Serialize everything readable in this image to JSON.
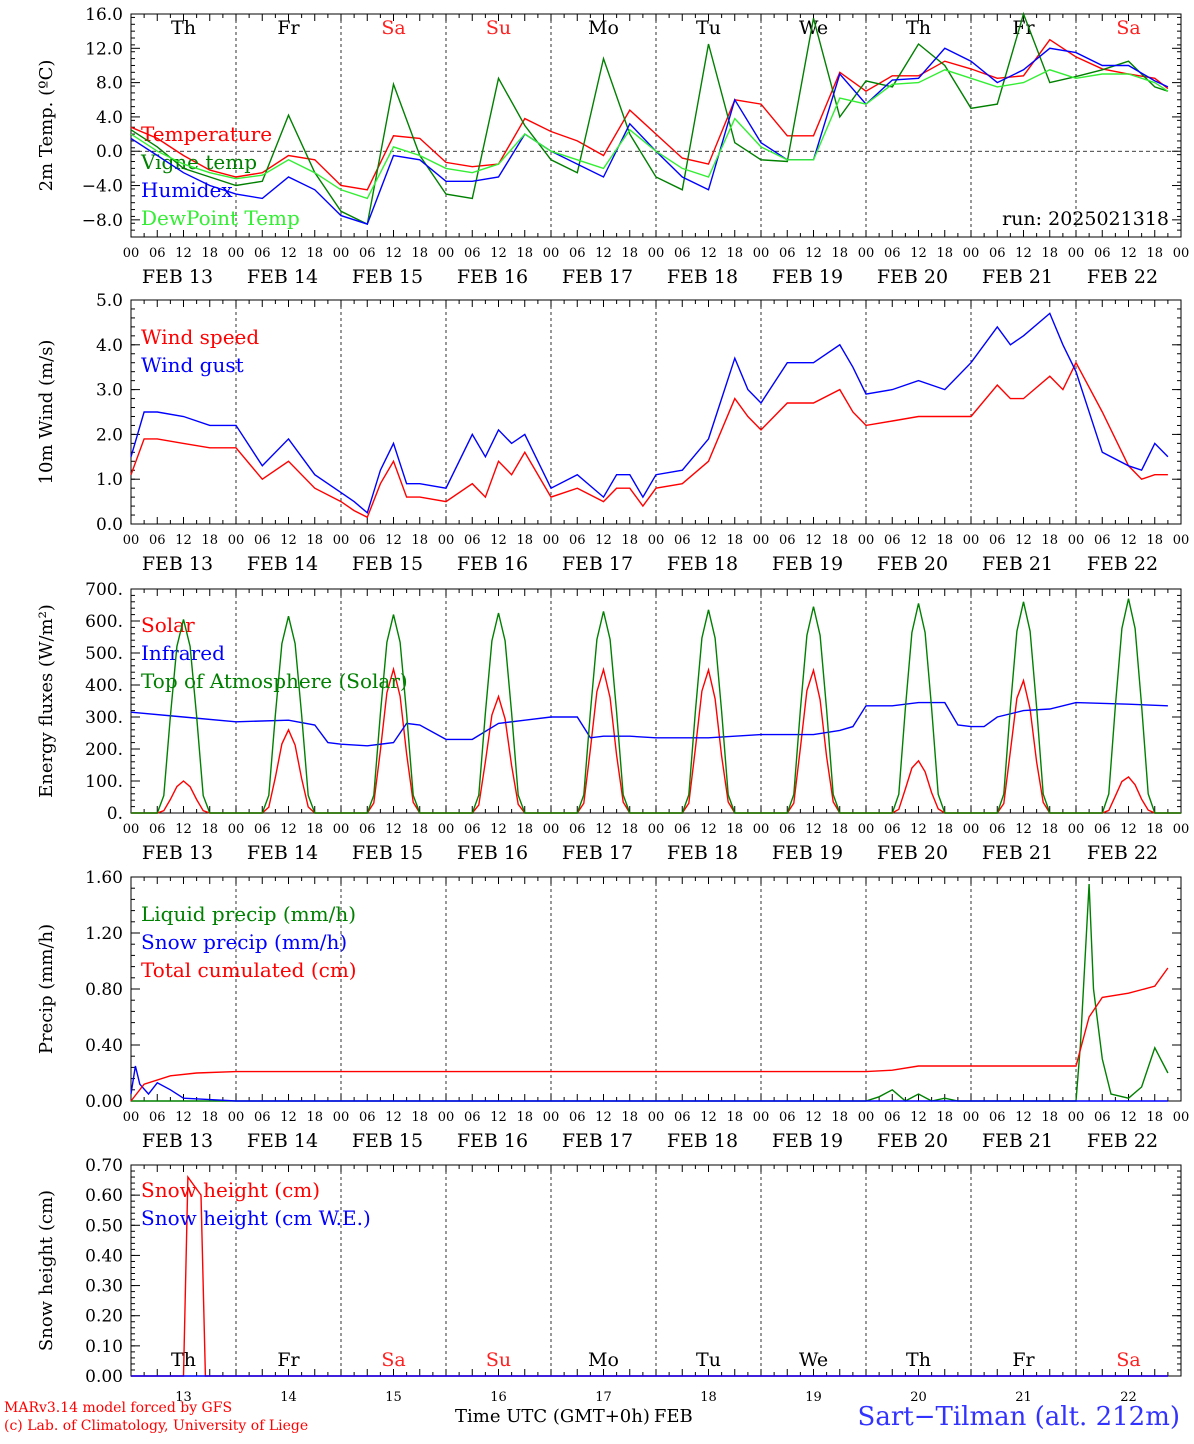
{
  "run_label": "run: 2025021318",
  "x_axis": {
    "hour_ticks": [
      "00",
      "06",
      "12",
      "18"
    ],
    "date_labels": [
      "FEB 13",
      "FEB 14",
      "FEB 15",
      "FEB 16",
      "FEB 17",
      "FEB 18",
      "FEB 19",
      "FEB 20",
      "FEB 21",
      "FEB 22"
    ],
    "day_names": [
      "Th",
      "Fr",
      "Sa",
      "Su",
      "Mo",
      "Tu",
      "We",
      "Th",
      "Fr",
      "Sa"
    ],
    "weekend_color": "#ff2020",
    "weekday_color": "#000000",
    "bottom_day_numbers": [
      "13",
      "14",
      "15",
      "16",
      "17",
      "18",
      "19",
      "20",
      "21",
      "22"
    ],
    "title": "Time UTC (GMT+0h)",
    "month": "FEB",
    "days": 10
  },
  "footer": {
    "model_line": "MARv3.14 model forced by GFS",
    "lab_line": "(c) Lab. of Climatology, University of Liege",
    "station": "Sart−Tilman (alt. 212m)"
  },
  "colors": {
    "red": "#ff0000",
    "green": "#008000",
    "blue": "#0000ff",
    "lime": "#33ee33",
    "grid": "#000000"
  },
  "chart_data": [
    {
      "type": "line",
      "ylabel": "2m Temp. (ºC)",
      "ylim": [
        -10,
        16
      ],
      "yticks": [
        "−8.0",
        "−4.0",
        "0.0",
        "4.0",
        "8.0",
        "12.0",
        "16.0"
      ],
      "ytick_values": [
        -8,
        -4,
        0,
        4,
        8,
        12,
        16
      ],
      "zero_line": true,
      "show_day_names_top": true,
      "x_unit": "hours since FEB 13 00 UTC",
      "series": [
        {
          "name": "Temperature",
          "color": "#ff0000",
          "x": [
            0,
            6,
            12,
            18,
            24,
            30,
            36,
            42,
            48,
            54,
            60,
            66,
            72,
            78,
            84,
            90,
            96,
            102,
            108,
            114,
            120,
            126,
            132,
            138,
            144,
            150,
            156,
            162,
            168,
            174,
            180,
            186,
            192,
            198,
            204,
            210,
            216,
            222,
            228,
            234,
            237
          ],
          "y": [
            2.8,
            1.5,
            -0.5,
            -2.2,
            -3.0,
            -2.5,
            -0.5,
            -1.0,
            -4.0,
            -4.5,
            1.8,
            1.5,
            -1.3,
            -1.8,
            -1.5,
            3.8,
            2.3,
            1.2,
            -0.5,
            4.8,
            2.0,
            -0.8,
            -1.5,
            6.0,
            5.5,
            1.8,
            1.8,
            9.2,
            7.0,
            8.8,
            8.8,
            10.5,
            9.6,
            8.5,
            8.8,
            13.0,
            11.0,
            9.6,
            9.0,
            8.5,
            7.3
          ]
        },
        {
          "name": "Vigne temp",
          "color": "#008000",
          "x": [
            0,
            6,
            12,
            18,
            24,
            30,
            36,
            42,
            48,
            54,
            60,
            66,
            72,
            78,
            84,
            90,
            96,
            102,
            108,
            114,
            120,
            126,
            132,
            138,
            144,
            150,
            156,
            162,
            168,
            174,
            180,
            186,
            192,
            198,
            204,
            210,
            216,
            222,
            228,
            234,
            237
          ],
          "y": [
            2.5,
            0.5,
            -2.0,
            -3.0,
            -4.0,
            -3.5,
            4.2,
            -2.5,
            -7.0,
            -8.5,
            7.8,
            -0.5,
            -5.0,
            -5.5,
            8.5,
            3.0,
            -1.0,
            -2.5,
            10.8,
            2.0,
            -3.0,
            -4.5,
            12.5,
            1.0,
            -1.0,
            -1.2,
            15.5,
            4.0,
            8.2,
            7.5,
            12.5,
            10.0,
            5.0,
            5.5,
            16.0,
            8.0,
            8.7,
            9.5,
            10.5,
            7.5,
            7.0
          ]
        },
        {
          "name": "Humidex",
          "color": "#0000ff",
          "x": [
            0,
            6,
            12,
            18,
            24,
            30,
            36,
            42,
            48,
            54,
            60,
            66,
            72,
            78,
            84,
            90,
            96,
            102,
            108,
            114,
            120,
            126,
            132,
            138,
            144,
            150,
            156,
            162,
            168,
            174,
            180,
            186,
            192,
            198,
            204,
            210,
            216,
            222,
            228,
            234,
            237
          ],
          "y": [
            1.5,
            -0.5,
            -2.5,
            -4.0,
            -5.0,
            -5.5,
            -3.0,
            -4.5,
            -7.5,
            -8.5,
            -0.5,
            -1.0,
            -3.5,
            -3.5,
            -3.0,
            2.0,
            0.0,
            -1.5,
            -3.0,
            3.2,
            0.0,
            -3.0,
            -4.5,
            6.0,
            1.0,
            -1.0,
            -1.0,
            9.0,
            5.5,
            8.3,
            8.5,
            12.0,
            10.5,
            8.0,
            9.5,
            12.0,
            11.5,
            10.0,
            10.0,
            8.2,
            7.5
          ]
        },
        {
          "name": "DewPoint Temp",
          "color": "#33ee33",
          "x": [
            0,
            6,
            12,
            18,
            24,
            30,
            36,
            42,
            48,
            54,
            60,
            66,
            72,
            78,
            84,
            90,
            96,
            102,
            108,
            114,
            120,
            126,
            132,
            138,
            144,
            150,
            156,
            162,
            168,
            174,
            180,
            186,
            192,
            198,
            204,
            210,
            216,
            222,
            228,
            234,
            237
          ],
          "y": [
            2.0,
            0.0,
            -1.5,
            -2.5,
            -3.2,
            -2.8,
            -1.0,
            -2.5,
            -4.5,
            -5.5,
            0.5,
            -0.5,
            -2.0,
            -2.5,
            -1.5,
            2.0,
            0.0,
            -1.0,
            -2.0,
            2.5,
            0.0,
            -2.0,
            -3.0,
            3.8,
            0.5,
            -1.0,
            -1.0,
            6.2,
            5.5,
            7.8,
            8.0,
            9.5,
            8.5,
            7.5,
            8.0,
            9.5,
            8.5,
            9.0,
            9.0,
            8.0,
            7.0
          ]
        }
      ]
    },
    {
      "type": "line",
      "ylabel": "10m Wind (m/s)",
      "ylim": [
        0,
        5
      ],
      "yticks": [
        "0.0",
        "1.0",
        "2.0",
        "3.0",
        "4.0",
        "5.0"
      ],
      "ytick_values": [
        0,
        1,
        2,
        3,
        4,
        5
      ],
      "x_unit": "hours since FEB 13 00 UTC",
      "series": [
        {
          "name": "Wind speed",
          "color": "#ff0000",
          "x": [
            0,
            3,
            6,
            12,
            18,
            24,
            30,
            36,
            42,
            48,
            51,
            54,
            57,
            60,
            63,
            66,
            72,
            78,
            81,
            84,
            87,
            90,
            96,
            102,
            108,
            111,
            114,
            117,
            120,
            126,
            132,
            138,
            141,
            144,
            150,
            156,
            162,
            165,
            168,
            174,
            180,
            186,
            192,
            198,
            201,
            204,
            210,
            213,
            216,
            222,
            228,
            231,
            234,
            237
          ],
          "y": [
            1.1,
            1.9,
            1.9,
            1.8,
            1.7,
            1.7,
            1.0,
            1.4,
            0.8,
            0.5,
            0.3,
            0.15,
            0.9,
            1.4,
            0.6,
            0.6,
            0.5,
            0.9,
            0.6,
            1.4,
            1.1,
            1.6,
            0.6,
            0.8,
            0.5,
            0.8,
            0.8,
            0.4,
            0.8,
            0.9,
            1.4,
            2.8,
            2.4,
            2.1,
            2.7,
            2.7,
            3.0,
            2.5,
            2.2,
            2.3,
            2.4,
            2.4,
            2.4,
            3.1,
            2.8,
            2.8,
            3.3,
            3.0,
            3.6,
            2.5,
            1.3,
            1.0,
            1.1,
            1.1
          ]
        },
        {
          "name": "Wind gust",
          "color": "#0000ff",
          "x": [
            0,
            3,
            6,
            12,
            18,
            24,
            30,
            36,
            42,
            48,
            51,
            54,
            57,
            60,
            63,
            66,
            72,
            78,
            81,
            84,
            87,
            90,
            96,
            102,
            108,
            111,
            114,
            117,
            120,
            126,
            132,
            138,
            141,
            144,
            150,
            156,
            162,
            165,
            168,
            174,
            180,
            186,
            192,
            198,
            201,
            204,
            210,
            213,
            216,
            222,
            228,
            231,
            234,
            237
          ],
          "y": [
            1.5,
            2.5,
            2.5,
            2.4,
            2.2,
            2.2,
            1.3,
            1.9,
            1.1,
            0.7,
            0.5,
            0.25,
            1.2,
            1.8,
            0.9,
            0.9,
            0.8,
            2.0,
            1.5,
            2.1,
            1.8,
            2.0,
            0.8,
            1.1,
            0.6,
            1.1,
            1.1,
            0.6,
            1.1,
            1.2,
            1.9,
            3.7,
            3.0,
            2.7,
            3.6,
            3.6,
            4.0,
            3.5,
            2.9,
            3.0,
            3.2,
            3.0,
            3.6,
            4.4,
            4.0,
            4.2,
            4.7,
            4.0,
            3.4,
            1.6,
            1.3,
            1.2,
            1.8,
            1.5
          ]
        }
      ]
    },
    {
      "type": "line",
      "ylabel": "Energy fluxes (W/m²)",
      "ylim": [
        0,
        700
      ],
      "yticks": [
        "0.",
        "100.",
        "200.",
        "300.",
        "400.",
        "500.",
        "600.",
        "700."
      ],
      "ytick_values": [
        0,
        100,
        200,
        300,
        400,
        500,
        600,
        700
      ],
      "x_unit": "hours since FEB 13 00 UTC",
      "daily_peak_hour": 12,
      "series": [
        {
          "name": "Solar",
          "color": "#ff0000",
          "kind": "diurnal",
          "daily_peaks": [
            100,
            260,
            450,
            365,
            450,
            450,
            450,
            165,
            420,
            115
          ]
        },
        {
          "name": "Infrared",
          "color": "#0000ff",
          "x": [
            0,
            12,
            24,
            36,
            42,
            45,
            48,
            54,
            60,
            63,
            66,
            72,
            78,
            84,
            90,
            96,
            102,
            105,
            108,
            114,
            120,
            132,
            144,
            156,
            162,
            165,
            168,
            174,
            180,
            186,
            189,
            192,
            195,
            198,
            204,
            210,
            216,
            228,
            237
          ],
          "y": [
            315,
            300,
            285,
            290,
            275,
            220,
            215,
            210,
            220,
            280,
            275,
            230,
            230,
            280,
            290,
            300,
            300,
            235,
            240,
            240,
            235,
            235,
            245,
            245,
            258,
            270,
            335,
            335,
            345,
            345,
            275,
            270,
            270,
            300,
            320,
            325,
            345,
            340,
            335
          ]
        },
        {
          "name": "Top of Atmosphere (Solar)",
          "color": "#008000",
          "kind": "diurnal",
          "daily_peaks": [
            605,
            615,
            620,
            625,
            630,
            635,
            645,
            655,
            660,
            670
          ]
        }
      ]
    },
    {
      "type": "line",
      "ylabel": "Precip (mm/h)",
      "ylim": [
        0,
        1.6
      ],
      "yticks": [
        "0.00",
        "0.40",
        "0.80",
        "1.20",
        "1.60"
      ],
      "ytick_values": [
        0,
        0.4,
        0.8,
        1.2,
        1.6
      ],
      "x_unit": "hours since FEB 13 00 UTC",
      "series": [
        {
          "name": "Liquid precip (mm/h)",
          "color": "#008000",
          "x": [
            0,
            168,
            171,
            174,
            177,
            180,
            183,
            186,
            189,
            192,
            216,
            217,
            219,
            220,
            222,
            224,
            228,
            231,
            234,
            237
          ],
          "y": [
            0,
            0,
            0.03,
            0.08,
            0.0,
            0.05,
            0.0,
            0.02,
            0.0,
            0,
            0,
            0.4,
            1.55,
            0.8,
            0.3,
            0.05,
            0.02,
            0.1,
            0.38,
            0.2
          ]
        },
        {
          "name": "Snow precip (mm/h)",
          "color": "#0000ff",
          "x": [
            0,
            1,
            2,
            4,
            6,
            9,
            12,
            18,
            24,
            237
          ],
          "y": [
            0.05,
            0.25,
            0.12,
            0.05,
            0.13,
            0.08,
            0.02,
            0.01,
            0,
            0
          ]
        },
        {
          "name": "Total cumulated (cm)",
          "color": "#ff0000",
          "x": [
            0,
            3,
            9,
            15,
            24,
            168,
            174,
            180,
            216,
            219,
            222,
            228,
            234,
            237
          ],
          "y": [
            0.0,
            0.12,
            0.18,
            0.2,
            0.21,
            0.21,
            0.22,
            0.25,
            0.25,
            0.6,
            0.74,
            0.77,
            0.82,
            0.95
          ]
        }
      ]
    },
    {
      "type": "line",
      "ylabel": "Snow height (cm)",
      "ylim": [
        0,
        0.7
      ],
      "yticks": [
        "0.00",
        "0.10",
        "0.20",
        "0.30",
        "0.40",
        "0.50",
        "0.60",
        "0.70"
      ],
      "ytick_values": [
        0,
        0.1,
        0.2,
        0.3,
        0.4,
        0.5,
        0.6,
        0.7
      ],
      "show_day_names_bottom": true,
      "x_unit": "hours since FEB 13 00 UTC",
      "series": [
        {
          "name": "Snow height (cm)",
          "color": "#ff0000",
          "x": [
            0,
            12,
            13,
            16,
            17,
            237
          ],
          "y": [
            0,
            0,
            0.66,
            0.6,
            0,
            0
          ]
        },
        {
          "name": "Snow height (cm W.E.)",
          "color": "#0000ff",
          "x": [
            0,
            237
          ],
          "y": [
            0,
            0
          ]
        }
      ]
    }
  ]
}
